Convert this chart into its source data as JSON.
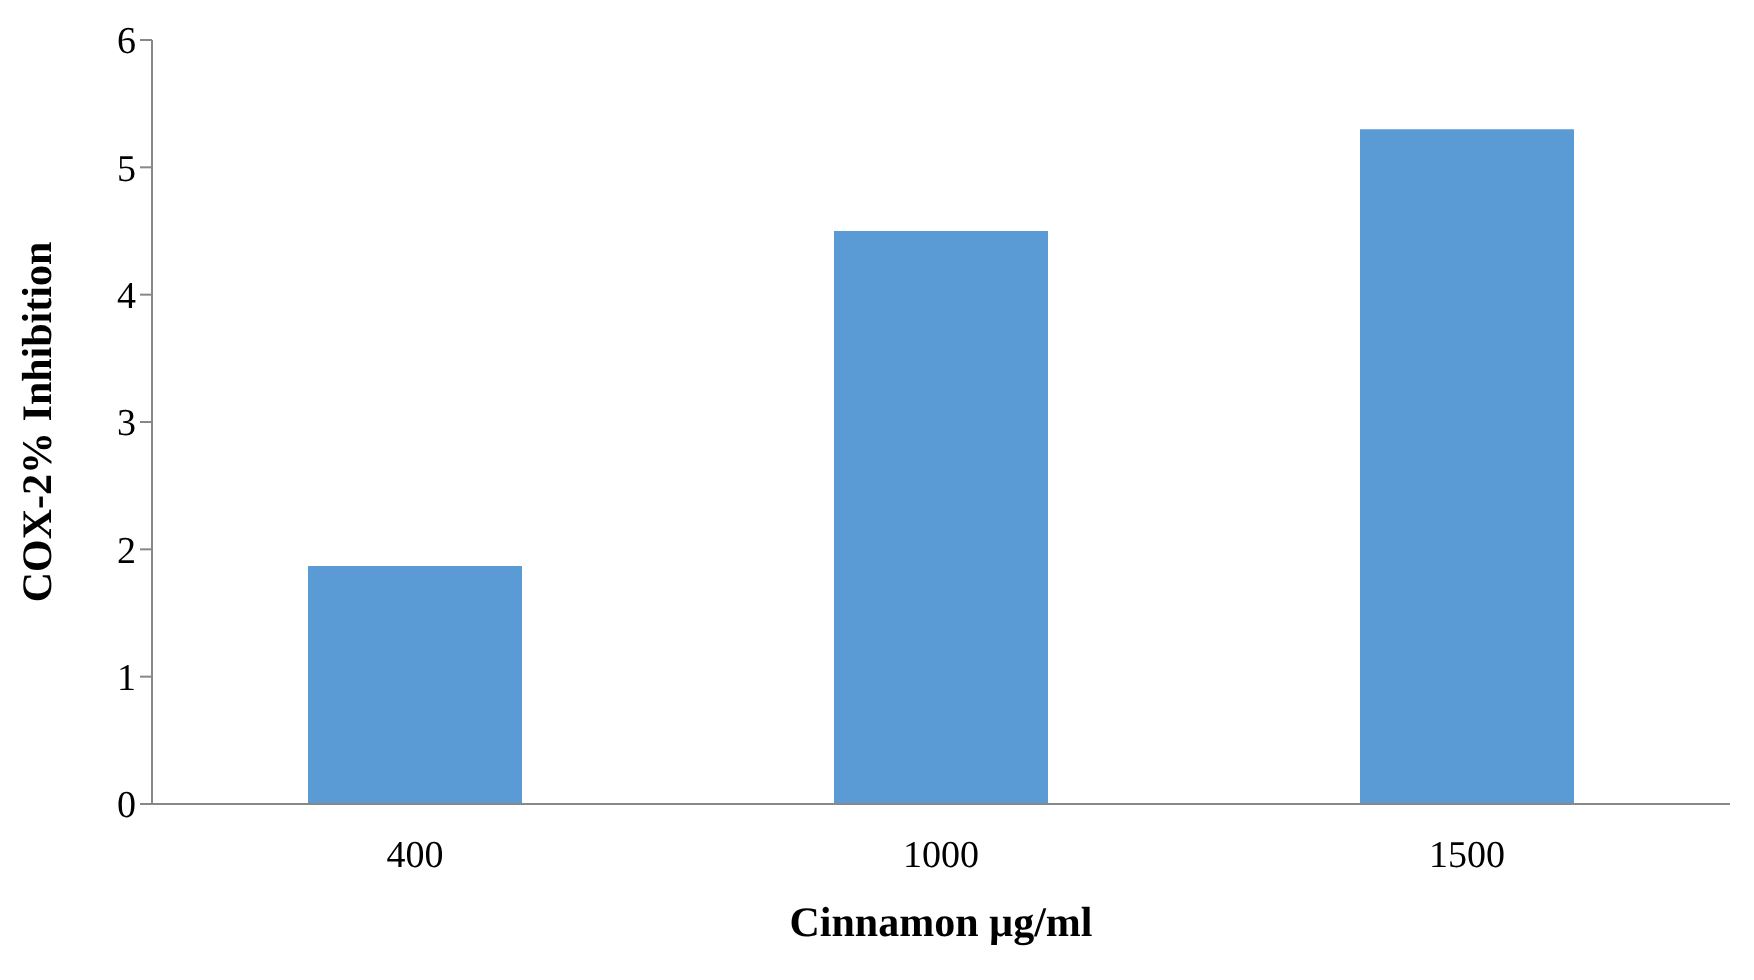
{
  "chart_data": {
    "type": "bar",
    "xlabel": "Cinnamon µg/ml",
    "ylabel": "COX-2% Inhibition",
    "categories": [
      "400",
      "1000",
      "1500"
    ],
    "values": [
      1.87,
      4.5,
      5.3
    ],
    "color": "#5b9bd5",
    "ylim": [
      0,
      6
    ],
    "yticks": [
      0,
      1,
      2,
      3,
      4,
      5,
      6
    ]
  }
}
